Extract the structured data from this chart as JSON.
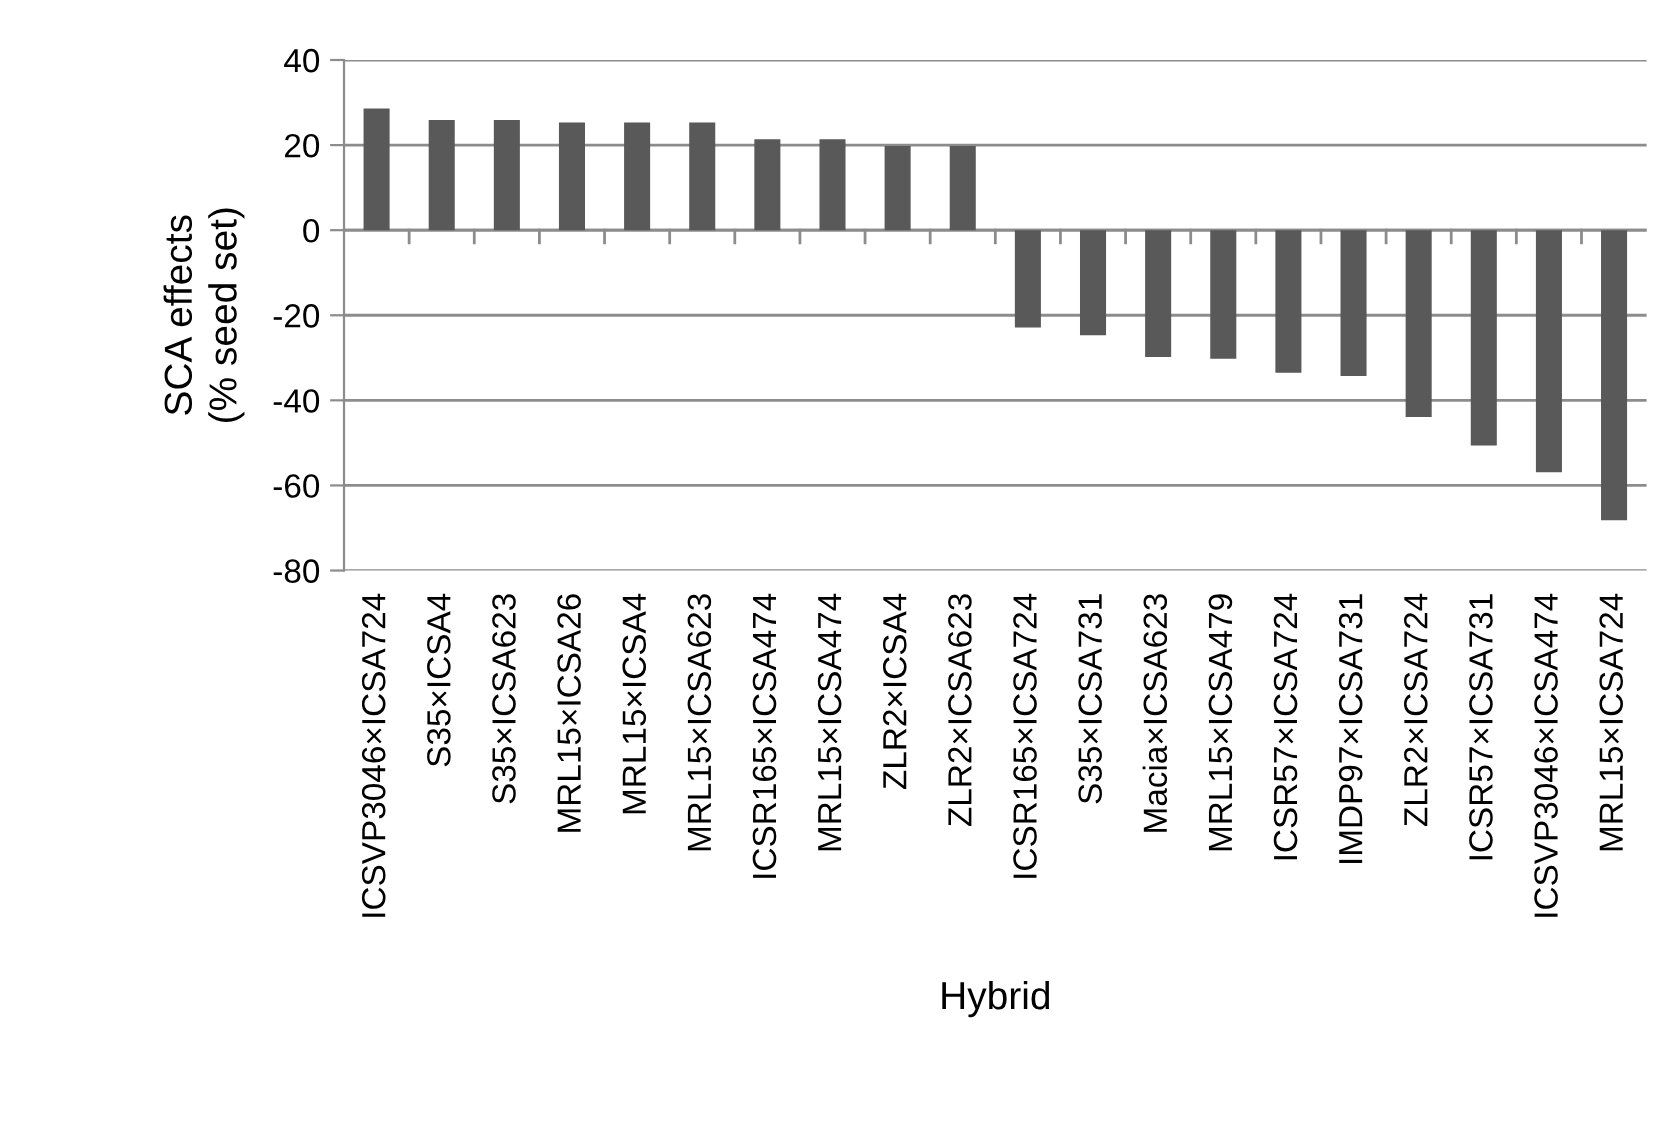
{
  "chart_data": {
    "type": "bar",
    "xlabel": "Hybrid",
    "ylabel": "SCA effects\n(% seed set)",
    "categories": [
      "ICSVP3046×ICSA724",
      "S35×ICSA4",
      "S35×ICSA623",
      "MRL15×ICSA26",
      "MRL15×ICSA4",
      "MRL15×ICSA623",
      "ICSR165×ICSA474",
      "MRL15×ICSA474",
      "ZLR2×ICSA4",
      "ZLR2×ICSA623",
      "ICSR165×ICSA724",
      "S35×ICSA731",
      "Macia×ICSA623",
      "MRL15×ICSA479",
      "ICSR57×ICSA724",
      "IMDP97×ICSA731",
      "ZLR2×ICSA724",
      "ICSR57×ICSA731",
      "ICSVP3046×ICSA474",
      "MRL15×ICSA724"
    ],
    "values": [
      28.6,
      25.9,
      25.9,
      25.3,
      25.3,
      25.3,
      21.4,
      21.4,
      19.8,
      19.8,
      -22.9,
      -24.7,
      -29.8,
      -30.2,
      -33.5,
      -34.3,
      -43.9,
      -50.6,
      -56.9,
      -68.2
    ],
    "color": "#595959",
    "ylim": [
      -80,
      40
    ],
    "yticks": [
      -80,
      -60,
      -40,
      -20,
      0,
      20,
      40
    ],
    "grid": "y",
    "legend": false
  }
}
